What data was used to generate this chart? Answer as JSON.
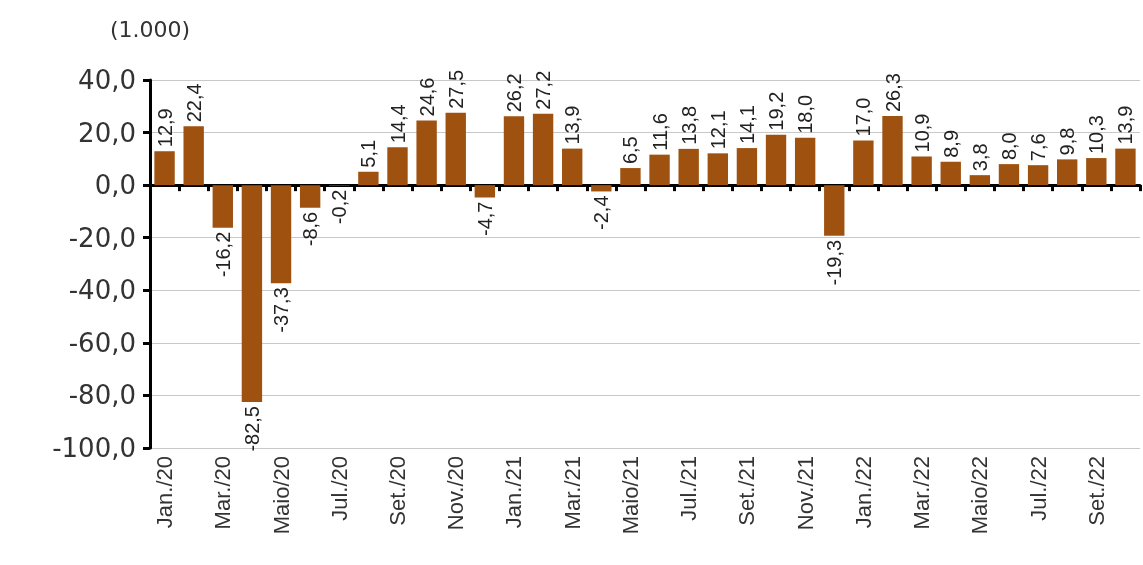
{
  "chart_data": {
    "type": "bar",
    "ylabel": "(1.000)",
    "categories": [
      "Jan./20",
      null,
      "Mar./20",
      null,
      "Maio/20",
      null,
      "Jul./20",
      null,
      "Set./20",
      null,
      "Nov./20",
      null,
      "Jan./21",
      null,
      "Mar./21",
      null,
      "Maio/21",
      null,
      "Jul./21",
      null,
      "Set./21",
      null,
      "Nov./21",
      null,
      "Jan./22",
      null,
      "Mar./22",
      null,
      "Maio/22",
      null,
      "Jul./22",
      null,
      "Set./22",
      null
    ],
    "values": [
      12.9,
      22.4,
      -16.2,
      -82.5,
      -37.3,
      -8.6,
      -0.2,
      5.1,
      14.4,
      24.6,
      27.5,
      -4.7,
      26.2,
      27.2,
      13.9,
      -2.4,
      6.5,
      11.6,
      13.8,
      12.1,
      14.1,
      19.2,
      18.0,
      -19.3,
      17.0,
      26.3,
      10.9,
      8.9,
      3.8,
      8.0,
      7.6,
      9.8,
      10.3,
      13.9
    ],
    "value_labels": [
      "12,9",
      "22,4",
      "-16,2",
      "-82,5",
      "-37,3",
      "-8,6",
      "-0,2",
      "5,1",
      "14,4",
      "24,6",
      "27,5",
      "-4,7",
      "26,2",
      "27,2",
      "13,9",
      "-2,4",
      "6,5",
      "11,6",
      "13,8",
      "12,1",
      "14,1",
      "19,2",
      "18,0",
      "-19,3",
      "17,0",
      "26,3",
      "10,9",
      "8,9",
      "3,8",
      "8,0",
      "7,6",
      "9,8",
      "10,3",
      "13,9"
    ],
    "color": "#9f5210",
    "ylim": [
      -100,
      40
    ],
    "yticks": [
      {
        "value": -100,
        "label": "-100,0"
      },
      {
        "value": -80,
        "label": "-80,0"
      },
      {
        "value": -60,
        "label": "-60,0"
      },
      {
        "value": -40,
        "label": "-40,0"
      },
      {
        "value": -20,
        "label": "-20,0"
      },
      {
        "value": 0,
        "label": "0,0"
      },
      {
        "value": 20,
        "label": "20,0"
      },
      {
        "value": 40,
        "label": "40,0"
      }
    ],
    "grid": "y"
  }
}
